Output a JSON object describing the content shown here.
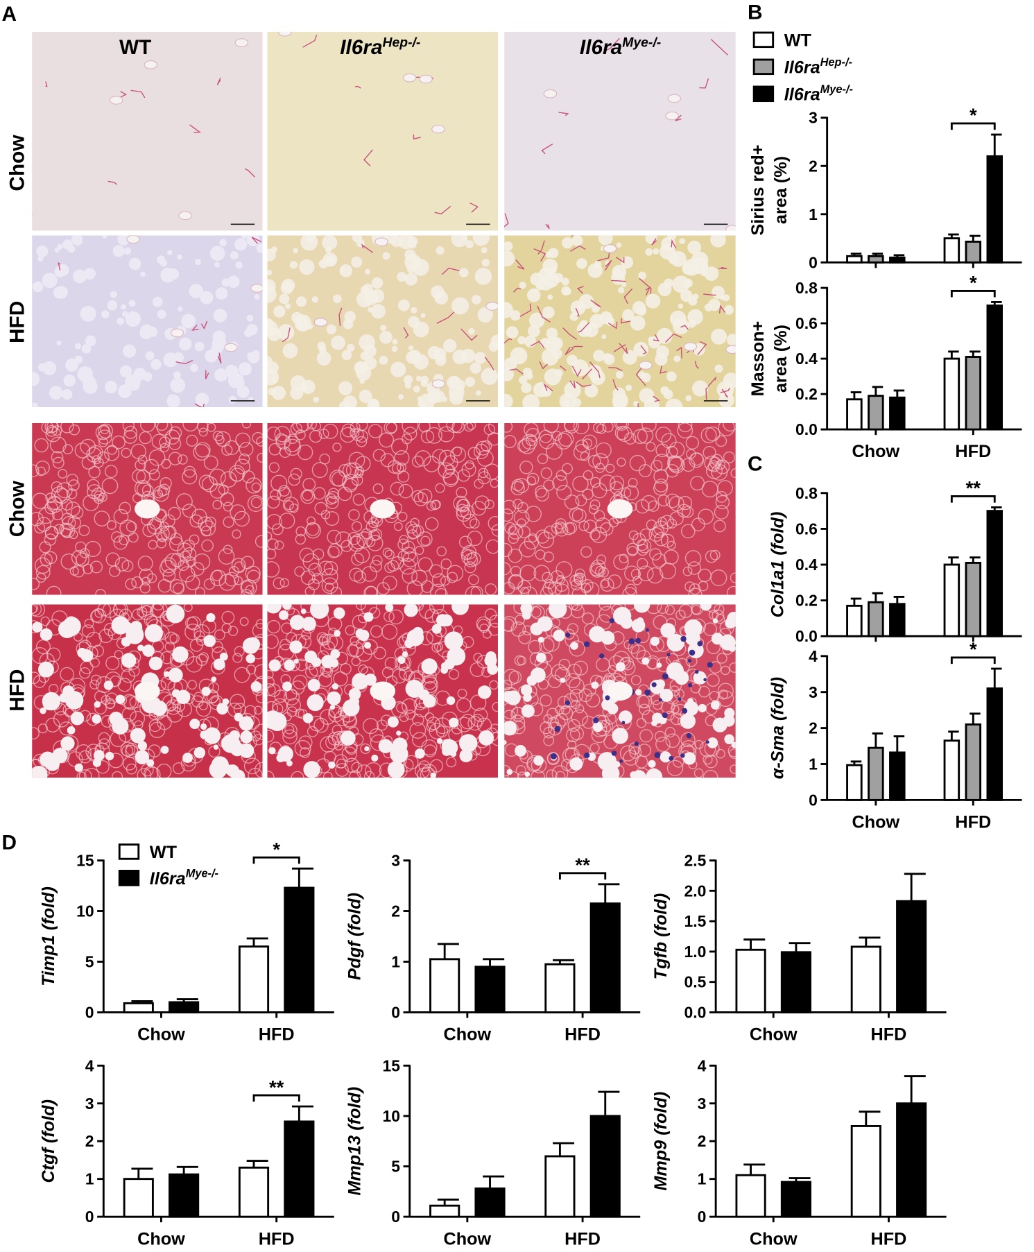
{
  "panels": {
    "A": "A",
    "B": "B",
    "C": "C",
    "D": "D"
  },
  "micrographs": {
    "columns": [
      {
        "text": "WT"
      },
      {
        "text": "Il6ra",
        "sup": "Hep-/-"
      },
      {
        "text": "Il6ra",
        "sup": "Mye-/-"
      }
    ],
    "rows": [
      "Chow",
      "HFD",
      "Chow",
      "HFD"
    ]
  },
  "chart_data": [
    {
      "type": "bar",
      "y_label": [
        "Sirius red+",
        "area (%)"
      ],
      "ylim": [
        0,
        3
      ],
      "yticks": [
        0,
        1,
        2,
        3
      ],
      "significance": "*",
      "series": [
        {
          "name": "WT",
          "color": "#ffffff",
          "values": [
            0.13,
            0.5
          ],
          "errors": [
            0.05,
            0.08
          ]
        },
        {
          "name": "Il6ra",
          "name_sup": "Hep-/-",
          "color": "#a0a0a0",
          "values": [
            0.13,
            0.43
          ],
          "errors": [
            0.05,
            0.12
          ]
        },
        {
          "name": "Il6ra",
          "name_sup": "Mye-/-",
          "color": "#000000",
          "values": [
            0.1,
            2.2
          ],
          "errors": [
            0.05,
            0.45
          ]
        }
      ]
    },
    {
      "type": "bar",
      "y_label": [
        "Masson+",
        "area (%)"
      ],
      "categories": [
        "Chow",
        "HFD"
      ],
      "ylim": [
        0,
        0.8
      ],
      "yticks": [
        {
          "value": 0,
          "label": "0.0"
        },
        0.2,
        0.4,
        0.6,
        0.8
      ],
      "significance": "*",
      "series": [
        {
          "color": "#ffffff",
          "values": [
            0.17,
            0.4
          ],
          "errors": [
            0.04,
            0.04
          ]
        },
        {
          "color": "#a0a0a0",
          "values": [
            0.19,
            0.41
          ],
          "errors": [
            0.05,
            0.03
          ]
        },
        {
          "color": "#000000",
          "values": [
            0.18,
            0.7
          ],
          "errors": [
            0.04,
            0.02
          ]
        }
      ]
    },
    {
      "type": "bar",
      "y_label": "Col1a1 (fold)",
      "ylim": [
        0,
        0.8
      ],
      "yticks": [
        {
          "value": 0,
          "label": "0.0"
        },
        0.2,
        0.4,
        0.6,
        0.8
      ],
      "significance": "**",
      "series": [
        {
          "color": "#ffffff",
          "values": [
            0.17,
            0.4
          ],
          "errors": [
            0.04,
            0.04
          ]
        },
        {
          "color": "#a0a0a0",
          "values": [
            0.19,
            0.41
          ],
          "errors": [
            0.05,
            0.03
          ]
        },
        {
          "color": "#000000",
          "values": [
            0.18,
            0.7
          ],
          "errors": [
            0.04,
            0.02
          ]
        }
      ]
    },
    {
      "type": "bar",
      "y_label": "α-Sma (fold)",
      "categories": [
        "Chow",
        "HFD"
      ],
      "ylim": [
        0,
        4
      ],
      "yticks": [
        0,
        1,
        2,
        3,
        4
      ],
      "significance": "*",
      "series": [
        {
          "color": "#ffffff",
          "values": [
            0.97,
            1.65
          ],
          "errors": [
            0.1,
            0.25
          ]
        },
        {
          "color": "#a0a0a0",
          "values": [
            1.45,
            2.1
          ],
          "errors": [
            0.4,
            0.3
          ]
        },
        {
          "color": "#000000",
          "values": [
            1.32,
            3.1
          ],
          "errors": [
            0.45,
            0.55
          ]
        }
      ]
    },
    {
      "type": "bar",
      "y_label": "Timp1 (fold)",
      "categories": [
        "Chow",
        "HFD"
      ],
      "ylim": [
        0,
        15
      ],
      "yticks": [
        0,
        5,
        10,
        15
      ],
      "significance": "*",
      "series": [
        {
          "name": "WT",
          "color": "#ffffff",
          "values": [
            0.9,
            6.5
          ],
          "errors": [
            0.2,
            0.8
          ]
        },
        {
          "name": "Il6ra",
          "name_sup": "Mye-/-",
          "color": "#000000",
          "values": [
            1.0,
            12.3
          ],
          "errors": [
            0.3,
            1.9
          ]
        }
      ]
    },
    {
      "type": "bar",
      "y_label": "Pdgf (fold)",
      "categories": [
        "Chow",
        "HFD"
      ],
      "ylim": [
        0,
        3
      ],
      "yticks": [
        0,
        1,
        2,
        3
      ],
      "significance": "**",
      "series": [
        {
          "color": "#ffffff",
          "values": [
            1.05,
            0.95
          ],
          "errors": [
            0.3,
            0.08
          ]
        },
        {
          "color": "#000000",
          "values": [
            0.9,
            2.15
          ],
          "errors": [
            0.15,
            0.38
          ]
        }
      ]
    },
    {
      "type": "bar",
      "y_label": "Tgfb (fold)",
      "categories": [
        "Chow",
        "HFD"
      ],
      "ylim": [
        0,
        2.5
      ],
      "yticks": [
        {
          "value": 0,
          "label": "0.0"
        },
        0.5,
        {
          "value": 1,
          "label": "1.0"
        },
        1.5,
        {
          "value": 2,
          "label": "2.0"
        },
        2.5
      ],
      "series": [
        {
          "color": "#ffffff",
          "values": [
            1.03,
            1.08
          ],
          "errors": [
            0.17,
            0.15
          ]
        },
        {
          "color": "#000000",
          "values": [
            0.99,
            1.83
          ],
          "errors": [
            0.15,
            0.45
          ]
        }
      ]
    },
    {
      "type": "bar",
      "y_label": "Ctgf (fold)",
      "categories": [
        "Chow",
        "HFD"
      ],
      "ylim": [
        0,
        4
      ],
      "yticks": [
        0,
        1,
        2,
        3,
        4
      ],
      "significance": "**",
      "series": [
        {
          "color": "#ffffff",
          "values": [
            1.0,
            1.3
          ],
          "errors": [
            0.27,
            0.18
          ]
        },
        {
          "color": "#000000",
          "values": [
            1.12,
            2.52
          ],
          "errors": [
            0.2,
            0.4
          ]
        }
      ]
    },
    {
      "type": "bar",
      "y_label": "Mmp13 (fold)",
      "categories": [
        "Chow",
        "HFD"
      ],
      "ylim": [
        0,
        15
      ],
      "yticks": [
        0,
        5,
        10,
        15
      ],
      "series": [
        {
          "color": "#ffffff",
          "values": [
            1.1,
            6.0
          ],
          "errors": [
            0.6,
            1.3
          ]
        },
        {
          "color": "#000000",
          "values": [
            2.8,
            10.0
          ],
          "errors": [
            1.2,
            2.4
          ]
        }
      ]
    },
    {
      "type": "bar",
      "y_label": "Mmp9 (fold)",
      "categories": [
        "Chow",
        "HFD"
      ],
      "ylim": [
        0,
        4
      ],
      "yticks": [
        0,
        1,
        2,
        3,
        4
      ],
      "series": [
        {
          "color": "#ffffff",
          "values": [
            1.1,
            2.4
          ],
          "errors": [
            0.28,
            0.38
          ]
        },
        {
          "color": "#000000",
          "values": [
            0.92,
            3.0
          ],
          "errors": [
            0.1,
            0.72
          ]
        }
      ]
    }
  ]
}
